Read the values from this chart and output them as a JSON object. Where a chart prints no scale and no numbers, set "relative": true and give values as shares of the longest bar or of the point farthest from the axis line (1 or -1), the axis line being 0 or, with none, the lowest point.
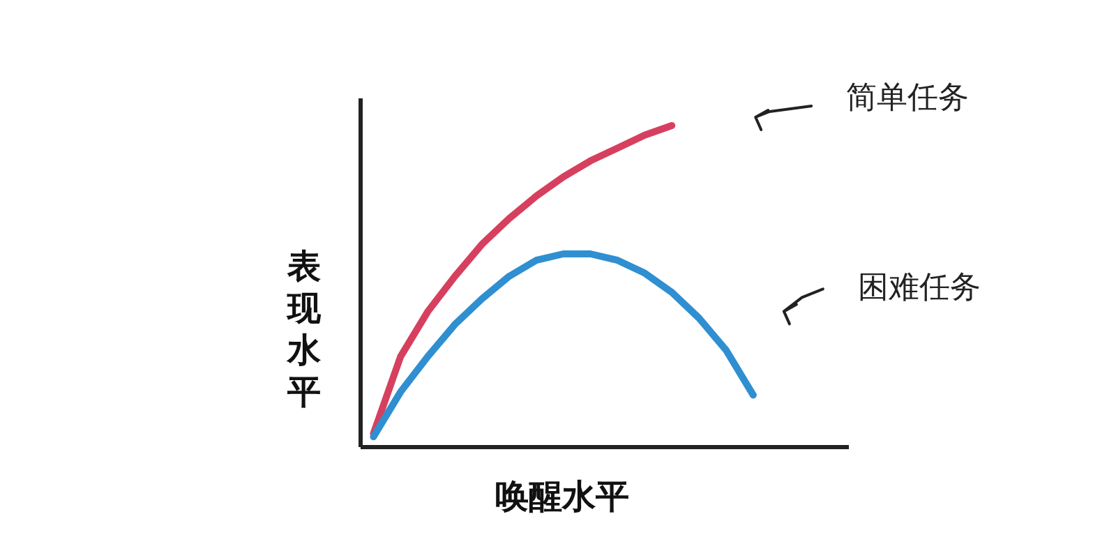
{
  "chart_data": {
    "type": "line",
    "relative": true,
    "xlabel": "唤醒水平",
    "ylabel": "表现水平",
    "categories": [
      null,
      null,
      null,
      null,
      null,
      null,
      null,
      null,
      null,
      null,
      null,
      null,
      null,
      null,
      null
    ],
    "series": [
      {
        "name": "简单任务",
        "color": "#d6405e",
        "values": [
          0.04,
          0.28,
          0.42,
          0.53,
          0.63,
          0.71,
          0.78,
          0.84,
          0.89,
          0.93,
          0.97,
          1.0,
          null,
          null,
          null
        ]
      },
      {
        "name": "困难任务",
        "color": "#2f8fd0",
        "values": [
          0.03,
          0.17,
          0.28,
          0.38,
          0.46,
          0.53,
          0.58,
          0.6,
          0.6,
          0.58,
          0.54,
          0.48,
          0.4,
          0.3,
          0.16
        ]
      }
    ],
    "grid": false,
    "marker": "none",
    "line_style": "solid"
  }
}
